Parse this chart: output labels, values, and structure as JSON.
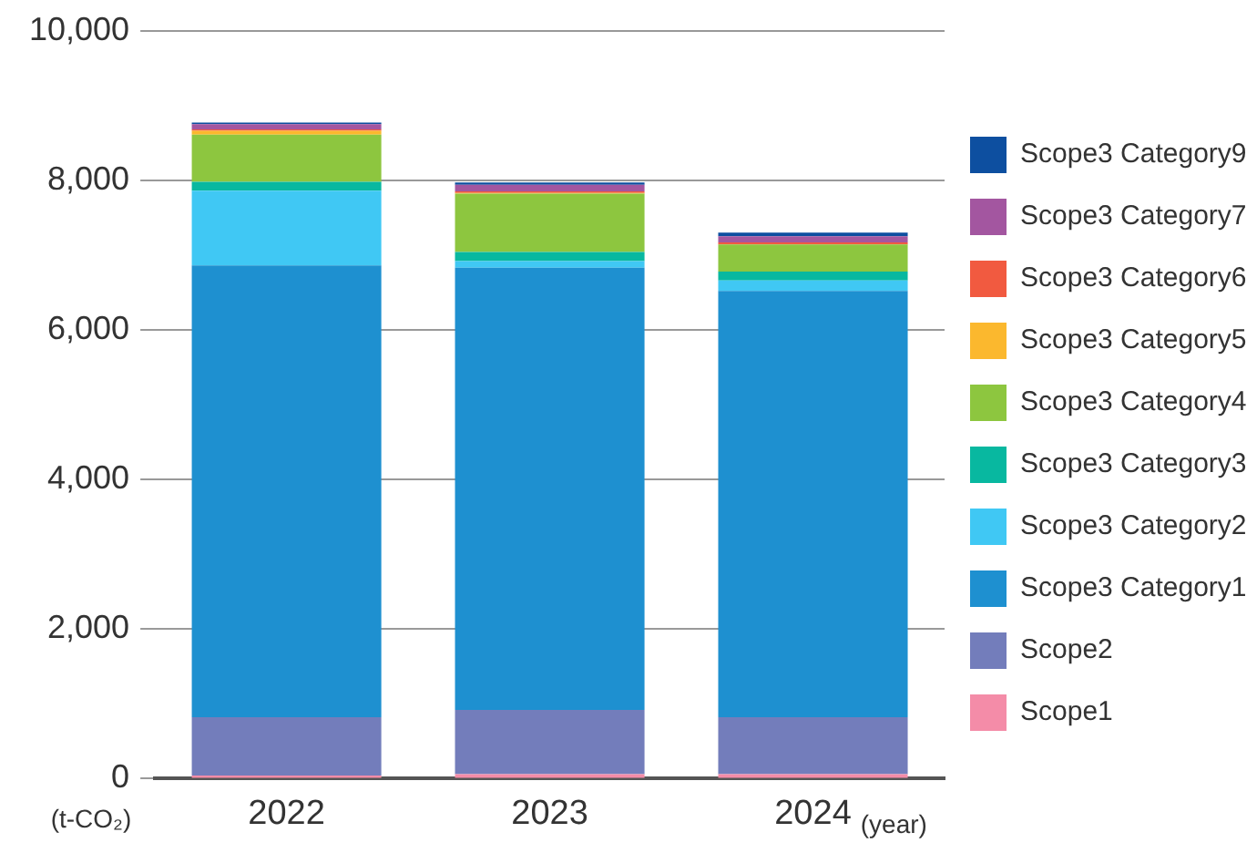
{
  "chart_data": {
    "type": "bar",
    "stacked": true,
    "xlabel": "(year)",
    "ylabel": "(t-CO₂)",
    "categories": [
      "2022",
      "2023",
      "2024"
    ],
    "series": [
      {
        "name": "Scope1",
        "color": "#f48ca8",
        "values": [
          40,
          60,
          60
        ]
      },
      {
        "name": "Scope2",
        "color": "#737dbb",
        "values": [
          780,
          860,
          760
        ]
      },
      {
        "name": "Scope3 Category1",
        "color": "#1e90d0",
        "values": [
          6040,
          5910,
          5700
        ]
      },
      {
        "name": "Scope3 Category2",
        "color": "#40c8f4",
        "values": [
          1000,
          90,
          140
        ]
      },
      {
        "name": "Scope3 Category3",
        "color": "#08b8a0",
        "values": [
          120,
          120,
          120
        ]
      },
      {
        "name": "Scope3 Category4",
        "color": "#8dc63f",
        "values": [
          630,
          780,
          360
        ]
      },
      {
        "name": "Scope3 Category5",
        "color": "#fbb82e",
        "values": [
          50,
          10,
          null
        ]
      },
      {
        "name": "Scope3 Category6",
        "color": "#f15a40",
        "values": [
          20,
          20,
          30
        ]
      },
      {
        "name": "Scope3 Category7",
        "color": "#a356a0",
        "values": [
          70,
          90,
          80
        ]
      },
      {
        "name": "Scope3 Category9",
        "color": "#0d4fa0",
        "values": [
          20,
          30,
          50
        ]
      }
    ],
    "ylim": [
      0,
      10000
    ],
    "yticks": [
      0,
      {
        "value": 2000,
        "label": "2,000"
      },
      {
        "value": 4000,
        "label": "4,000"
      },
      {
        "value": 6000,
        "label": "6,000"
      },
      {
        "value": 8000,
        "label": "8,000"
      },
      {
        "value": 10000,
        "label": "10,000"
      }
    ],
    "grid": "y",
    "legend": "right"
  }
}
